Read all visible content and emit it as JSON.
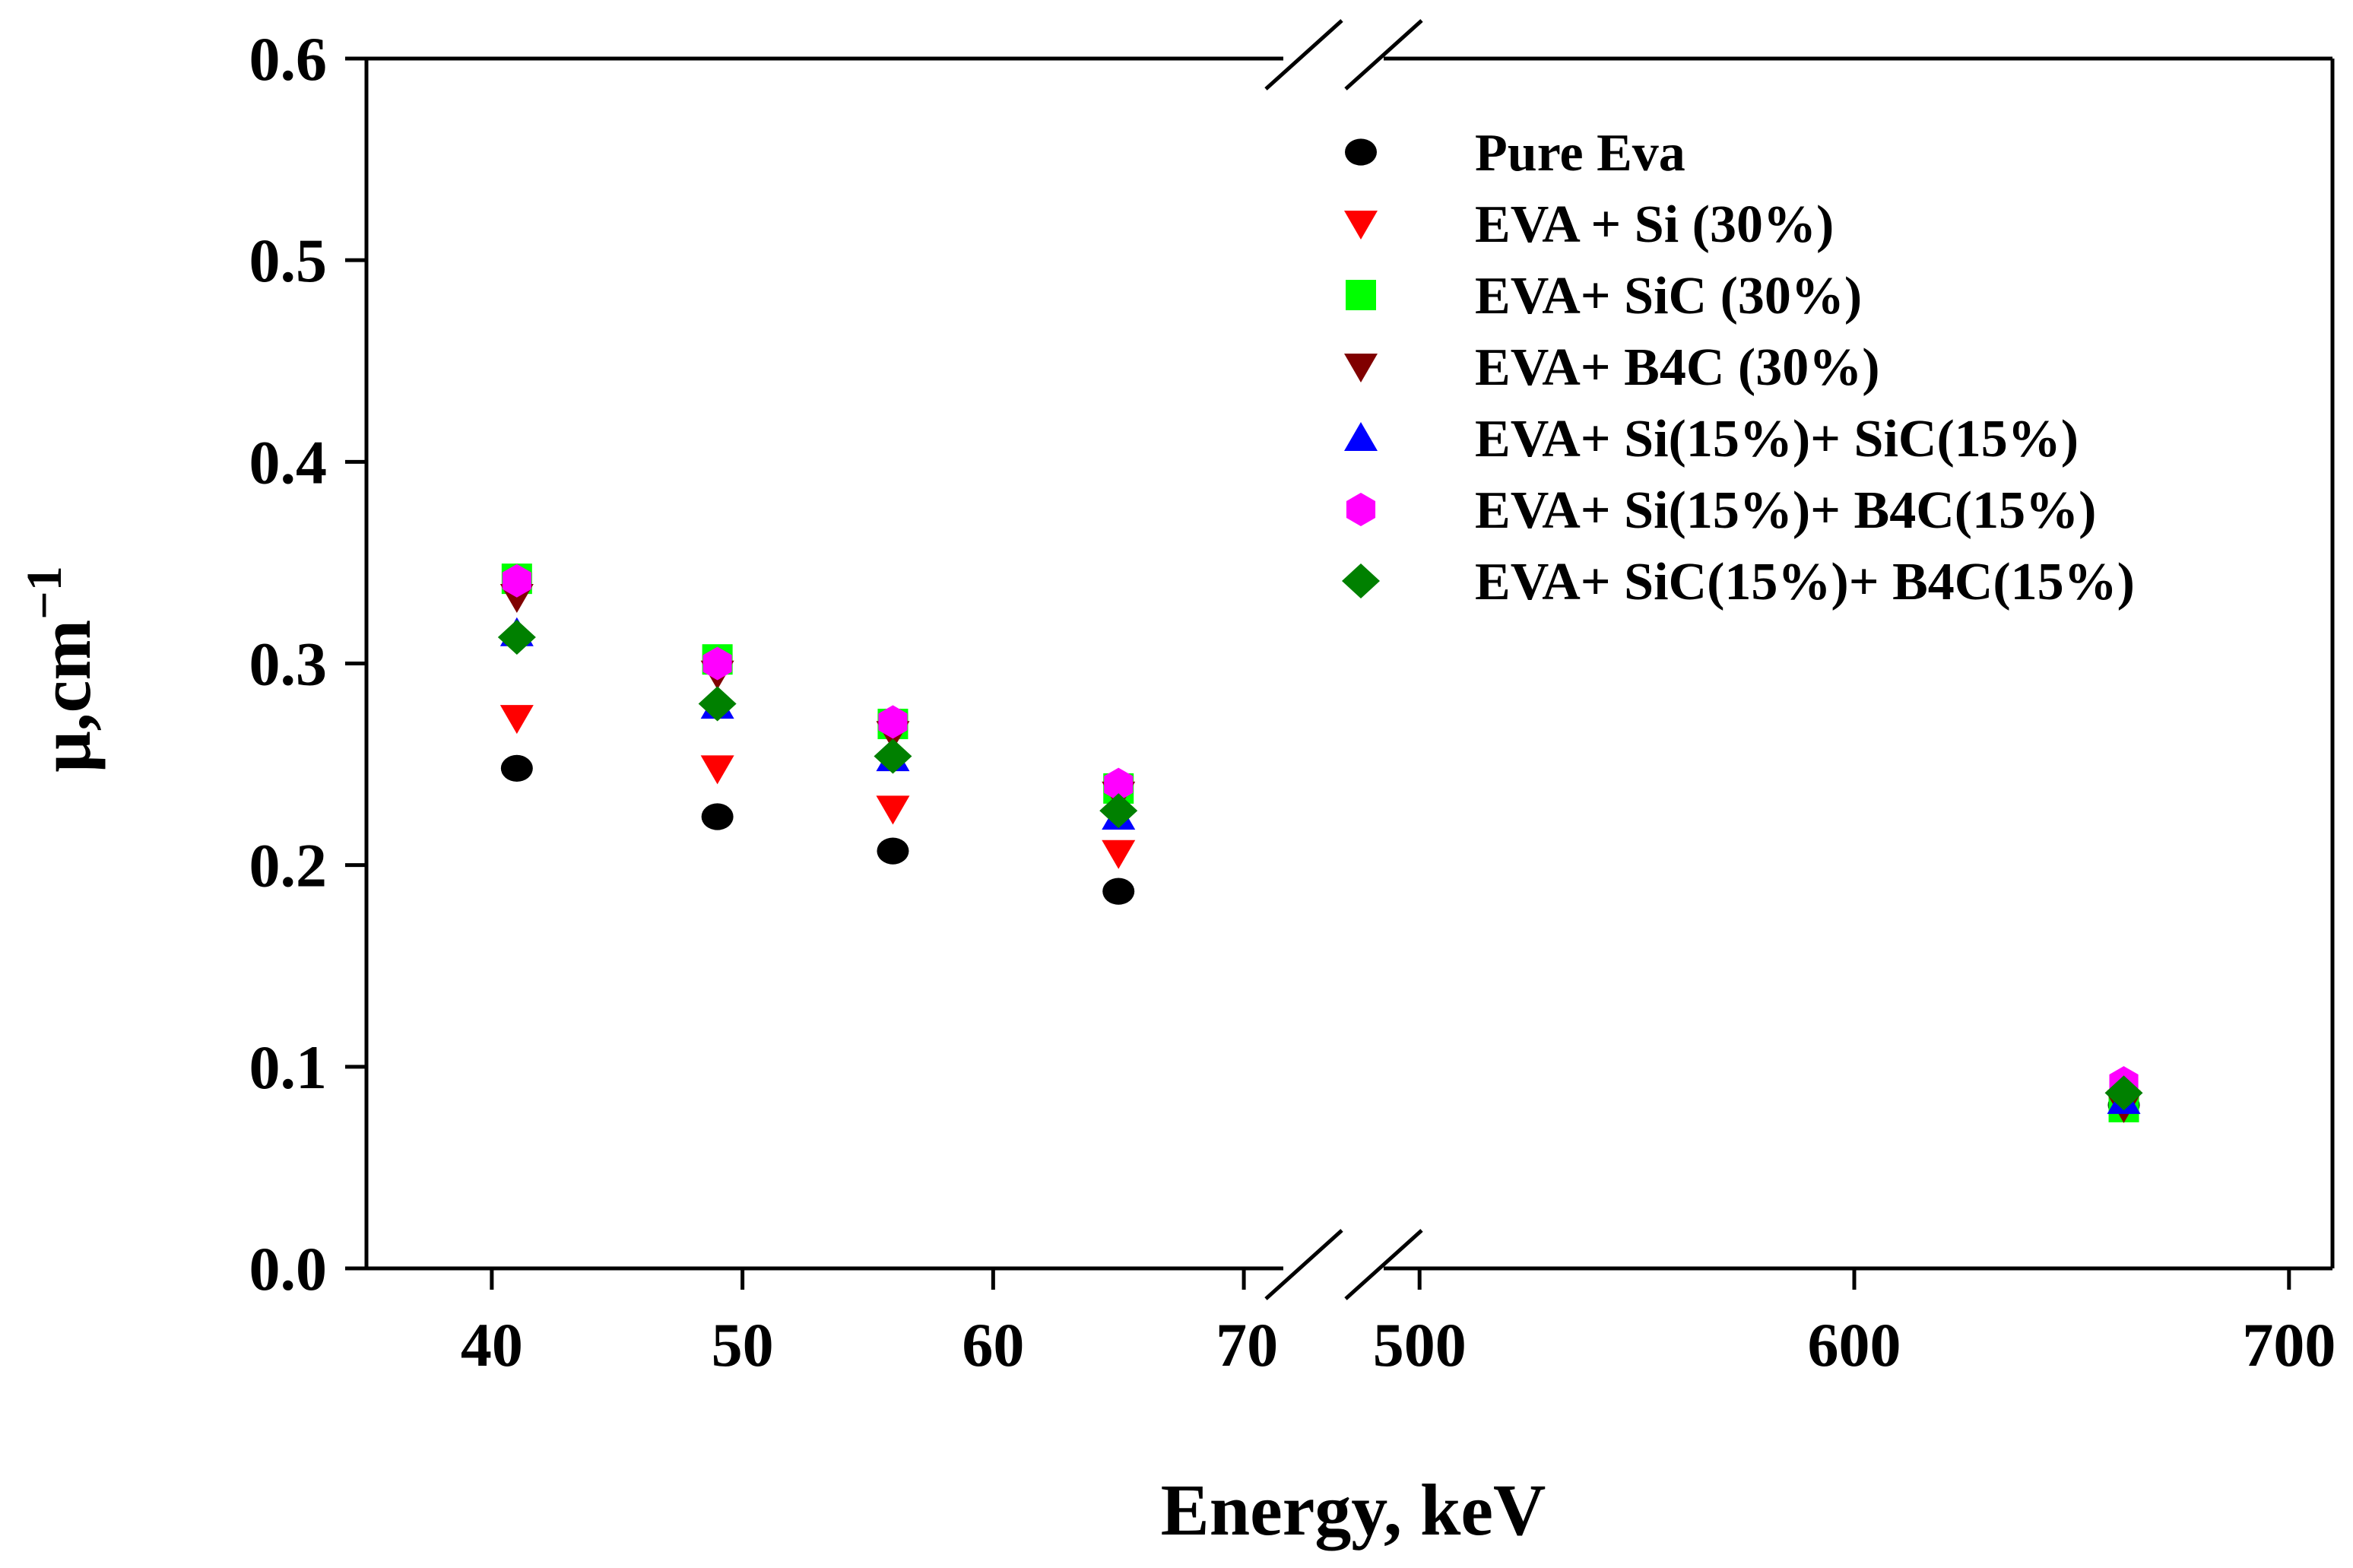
{
  "chart_data": {
    "type": "scatter",
    "title": "",
    "xlabel": "Energy, keV",
    "ylabel": "μ,cm",
    "ylabel_superscript": "−1",
    "ylim": [
      0.0,
      0.6
    ],
    "yticks": [
      "0.0",
      "0.1",
      "0.2",
      "0.3",
      "0.4",
      "0.5",
      "0.6"
    ],
    "x_axis_break": true,
    "x_segments": [
      {
        "xlim": [
          35,
          73
        ],
        "ticks": [
          40,
          50,
          60,
          70
        ]
      },
      {
        "xlim": [
          483,
          710
        ],
        "ticks": [
          500,
          600,
          700
        ]
      }
    ],
    "xtick_labels": [
      "40",
      "50",
      "60",
      "70",
      "500",
      "600",
      "700"
    ],
    "legend_position": "top-right",
    "x": [
      41,
      49,
      56,
      65,
      662
    ],
    "series": [
      {
        "name": "Pure Eva",
        "marker": "circle",
        "color": "#000000",
        "values": [
          0.248,
          0.224,
          0.207,
          0.187,
          0.081
        ]
      },
      {
        "name": "EVA + Si (30%)",
        "marker": "triangle-down",
        "color": "#ff0000",
        "values": [
          0.273,
          0.248,
          0.228,
          0.206,
          0.082
        ]
      },
      {
        "name": "EVA+ SiC (30%)",
        "marker": "square",
        "color": "#00ff00",
        "values": [
          0.342,
          0.302,
          0.27,
          0.238,
          0.08
        ]
      },
      {
        "name": "EVA+ B4C (30%)",
        "marker": "triangle-down",
        "color": "#800000",
        "values": [
          0.333,
          0.295,
          0.265,
          0.235,
          0.08
        ]
      },
      {
        "name": "EVA+ Si(15%)+ SiC(15%)",
        "marker": "triangle-up",
        "color": "#0000ff",
        "values": [
          0.315,
          0.279,
          0.253,
          0.224,
          0.083
        ]
      },
      {
        "name": "EVA+ Si(15%)+ B4C(15%)",
        "marker": "hexagon",
        "color": "#ff00ff",
        "values": [
          0.341,
          0.3,
          0.271,
          0.24,
          0.092
        ]
      },
      {
        "name": "EVA+ SiC(15%)+ B4C(15%)",
        "marker": "diamond",
        "color": "#008000",
        "values": [
          0.313,
          0.28,
          0.254,
          0.227,
          0.087
        ]
      }
    ]
  }
}
